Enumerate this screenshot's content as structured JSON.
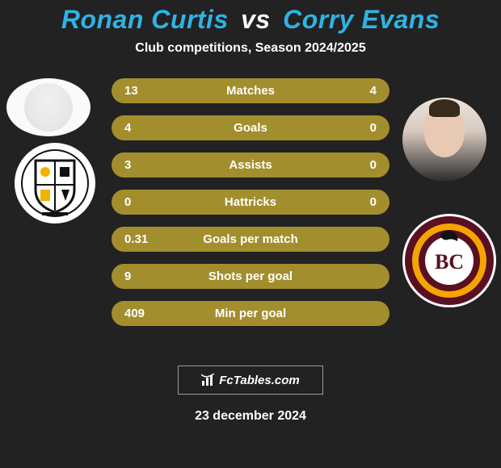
{
  "background_color": "#222222",
  "text_color": "#ffffff",
  "title": {
    "player1": "Ronan Curtis",
    "vs": "vs",
    "player2": "Corry Evans",
    "color_p1": "#2fb3e3",
    "color_vs": "#ffffff",
    "color_p2": "#2fb3e3",
    "fontsize": 32
  },
  "subtitle": {
    "text": "Club competitions, Season 2024/2025",
    "fontsize": 16,
    "color": "#ffffff"
  },
  "stats": {
    "bar_color": "#a38e2e",
    "bar_text_color": "#ffffff",
    "bar_fontsize": 15,
    "label_fontsize": 15,
    "rows": [
      {
        "left": "13",
        "label": "Matches",
        "right": "4"
      },
      {
        "left": "4",
        "label": "Goals",
        "right": "0"
      },
      {
        "left": "3",
        "label": "Assists",
        "right": "0"
      },
      {
        "left": "0",
        "label": "Hattricks",
        "right": "0"
      },
      {
        "left": "0.31",
        "label": "Goals per match",
        "right": ""
      },
      {
        "left": "9",
        "label": "Shots per goal",
        "right": ""
      },
      {
        "left": "409",
        "label": "Min per goal",
        "right": ""
      }
    ]
  },
  "left_player_name": "Ronan Curtis",
  "right_player_name": "Corry Evans",
  "left_club": {
    "name": "Port Vale FC",
    "shield_bg": "#ffffff",
    "shield_stroke": "#111111",
    "accent": "#f2b200"
  },
  "right_club": {
    "name": "Bradford City AFC",
    "initials": "BC",
    "ring_outer": "#5a1020",
    "ring_accent": "#f5a400",
    "center_bg": "#ffffff"
  },
  "brand": {
    "text": "FcTables.com",
    "fontsize": 15,
    "color": "#ffffff",
    "border_color": "rgba(255,255,255,0.55)"
  },
  "date": {
    "text": "23 december 2024",
    "fontsize": 16,
    "color": "#ffffff"
  }
}
